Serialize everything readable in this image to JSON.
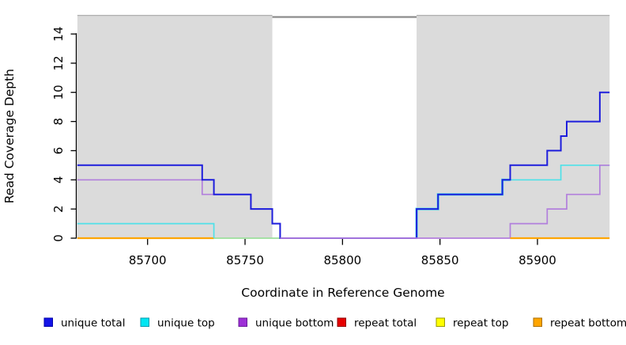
{
  "chart_data": {
    "type": "line",
    "subtype": "step-coverage-plot",
    "title": "",
    "xlabel": "Coordinate in Reference Genome",
    "ylabel": "Read Coverage Depth",
    "xlim": [
      85664,
      85937
    ],
    "ylim": [
      0,
      15
    ],
    "xticks": [
      85700,
      85750,
      85800,
      85850,
      85900
    ],
    "yticks": [
      0,
      2,
      4,
      6,
      8,
      10,
      12,
      14
    ],
    "grid": false,
    "legend_position": "bottom",
    "background_shaded_regions": [
      [
        85664,
        85764
      ],
      [
        85838,
        85937
      ]
    ],
    "masked_white_region": [
      85764,
      85838
    ],
    "colors": {
      "shaded_bg": "#DBDBDB",
      "shaded_bg_top_edge": "#ADADAD",
      "masked_top_line": "#8C8C8C",
      "axis": "#000000"
    },
    "series": [
      {
        "name": "unique total",
        "color": "#1E1EDC",
        "step_changes": [
          [
            85664,
            5
          ],
          [
            85728,
            4
          ],
          [
            85734,
            3
          ],
          [
            85753,
            2
          ],
          [
            85764,
            1
          ],
          [
            85768,
            0
          ],
          [
            85838,
            2
          ],
          [
            85849,
            3
          ],
          [
            85882,
            4
          ],
          [
            85886,
            5
          ],
          [
            85905,
            6
          ],
          [
            85912,
            7
          ],
          [
            85915,
            8
          ],
          [
            85932,
            10
          ]
        ],
        "end_x": 85937
      },
      {
        "name": "unique top",
        "color": "#00E6F2",
        "step_changes": [
          [
            85664,
            1
          ],
          [
            85734,
            0
          ],
          [
            85838,
            2
          ],
          [
            85849,
            3
          ],
          [
            85882,
            4
          ],
          [
            85912,
            5
          ]
        ],
        "end_x": 85937
      },
      {
        "name": "unique bottom",
        "color": "#A020F0",
        "step_changes": [
          [
            85664,
            4
          ],
          [
            85728,
            3
          ],
          [
            85753,
            2
          ],
          [
            85764,
            1
          ],
          [
            85768,
            0
          ],
          [
            85886,
            1
          ],
          [
            85905,
            2
          ],
          [
            85915,
            3
          ],
          [
            85932,
            5
          ]
        ],
        "end_x": 85937
      },
      {
        "name": "repeat total",
        "color": "#E60000",
        "step_changes": [
          [
            85664,
            0
          ]
        ],
        "end_x": 85937
      },
      {
        "name": "repeat top",
        "color": "#FFFF00",
        "step_changes": [
          [
            85664,
            0
          ]
        ],
        "end_x": 85937
      },
      {
        "name": "repeat bottom",
        "color": "#FFA500",
        "step_changes": [
          [
            85664,
            0
          ]
        ],
        "end_x": 85937
      }
    ],
    "render_lines": [
      {
        "name": "repeat-bottom-left",
        "color": "#FFA500",
        "width": 2.2,
        "points": [
          [
            85664,
            0
          ],
          [
            85734,
            0
          ]
        ]
      },
      {
        "name": "overlap-blend-zero",
        "color": "#9CDF9C",
        "width": 1.8,
        "points": [
          [
            85734,
            0
          ],
          [
            85768,
            0
          ]
        ]
      },
      {
        "name": "unique-top-left",
        "color": "#4FE1E8",
        "width": 1.7,
        "points": [
          [
            85664,
            1
          ],
          [
            85734,
            1
          ],
          [
            85734,
            0
          ]
        ]
      },
      {
        "name": "unique-top-right-under",
        "color": "#55DCE8",
        "width": 3.2,
        "points": [
          [
            85838,
            0
          ],
          [
            85838,
            2
          ],
          [
            85849,
            2
          ],
          [
            85849,
            3
          ],
          [
            85882,
            3
          ],
          [
            85882,
            4
          ],
          [
            85886,
            4
          ]
        ]
      },
      {
        "name": "unique-top-right",
        "color": "#4FE1E8",
        "width": 1.7,
        "points": [
          [
            85886,
            4
          ],
          [
            85912,
            4
          ],
          [
            85912,
            5
          ],
          [
            85937,
            5
          ]
        ]
      },
      {
        "name": "unique-bottom-under",
        "color": "#B27FDC",
        "width": 1.7,
        "points": [
          [
            85664,
            4
          ],
          [
            85728,
            4
          ],
          [
            85728,
            3
          ],
          [
            85753,
            3
          ],
          [
            85753,
            2
          ],
          [
            85764,
            2
          ],
          [
            85764,
            1
          ],
          [
            85768,
            1
          ],
          [
            85768,
            0
          ]
        ]
      },
      {
        "name": "unique-total",
        "color": "#1E1EDC",
        "width": 2,
        "points": [
          [
            85664,
            5
          ],
          [
            85728,
            5
          ],
          [
            85728,
            4
          ],
          [
            85734,
            4
          ],
          [
            85734,
            3
          ],
          [
            85753,
            3
          ],
          [
            85753,
            2
          ],
          [
            85764,
            2
          ],
          [
            85764,
            1
          ],
          [
            85768,
            1
          ],
          [
            85768,
            0
          ],
          [
            85838,
            0
          ],
          [
            85838,
            2
          ],
          [
            85849,
            2
          ],
          [
            85849,
            3
          ],
          [
            85882,
            3
          ],
          [
            85882,
            4
          ],
          [
            85886,
            4
          ],
          [
            85886,
            5
          ],
          [
            85905,
            5
          ],
          [
            85905,
            6
          ],
          [
            85912,
            6
          ],
          [
            85912,
            7
          ],
          [
            85915,
            7
          ],
          [
            85915,
            8
          ],
          [
            85932,
            8
          ],
          [
            85932,
            10
          ],
          [
            85937,
            10
          ]
        ]
      },
      {
        "name": "unique-bottom-over",
        "color": "#B27FDC",
        "width": 1.7,
        "points": [
          [
            85768,
            0
          ],
          [
            85886,
            0
          ],
          [
            85886,
            1
          ],
          [
            85905,
            1
          ],
          [
            85905,
            2
          ],
          [
            85915,
            2
          ],
          [
            85915,
            3
          ],
          [
            85932,
            3
          ],
          [
            85932,
            5
          ],
          [
            85937,
            5
          ]
        ]
      },
      {
        "name": "repeat-bottom-right",
        "color": "#FFA500",
        "width": 2.2,
        "points": [
          [
            85886,
            0
          ],
          [
            85937,
            0
          ]
        ]
      }
    ],
    "legend": [
      {
        "label": "unique total",
        "color": "#1414E8",
        "border": "#0000A8"
      },
      {
        "label": "unique top",
        "color": "#00E6F2",
        "border": "#009AAE"
      },
      {
        "label": "unique bottom",
        "color": "#9D2FD6",
        "border": "#6A1C9A"
      },
      {
        "label": "repeat total",
        "color": "#E60000",
        "border": "#8F0000"
      },
      {
        "label": "repeat top",
        "color": "#FFFF00",
        "border": "#9A9A00"
      },
      {
        "label": "repeat bottom",
        "color": "#FFA500",
        "border": "#AA6E00"
      }
    ]
  }
}
